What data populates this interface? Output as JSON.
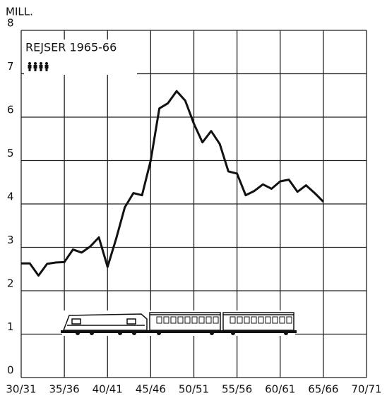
{
  "chart_data": {
    "type": "line",
    "title": "REJSER 1965-66",
    "ylabel": "MILL.",
    "x": [
      1930,
      1931,
      1932,
      1933,
      1934,
      1935,
      1936,
      1937,
      1938,
      1939,
      1940,
      1941,
      1942,
      1943,
      1944,
      1945,
      1946,
      1947,
      1948,
      1949,
      1950,
      1951,
      1952,
      1953,
      1954,
      1955,
      1956,
      1957,
      1958,
      1959,
      1960,
      1961,
      1962,
      1963,
      1964,
      1965
    ],
    "series": [
      {
        "color": "#111111",
        "values": [
          2.63,
          2.63,
          2.35,
          2.62,
          2.65,
          2.66,
          2.95,
          2.88,
          3.02,
          3.23,
          2.55,
          3.2,
          3.92,
          4.25,
          4.2,
          5.0,
          6.2,
          6.32,
          6.6,
          6.38,
          5.85,
          5.42,
          5.68,
          5.38,
          4.75,
          4.7,
          4.2,
          4.3,
          4.45,
          4.35,
          4.52,
          4.56,
          4.28,
          4.43,
          4.25,
          4.05
        ]
      }
    ],
    "xlim": [
      1930,
      1970
    ],
    "xticks": [
      {
        "value": 1930,
        "label": "30/31"
      },
      {
        "value": 1935,
        "label": "35/36"
      },
      {
        "value": 1940,
        "label": "40/41"
      },
      {
        "value": 1945,
        "label": "45/46"
      },
      {
        "value": 1950,
        "label": "50/51"
      },
      {
        "value": 1955,
        "label": "55/56"
      },
      {
        "value": 1960,
        "label": "60/61"
      },
      {
        "value": 1965,
        "label": "65/66"
      },
      {
        "value": 1970,
        "label": "70/71"
      }
    ],
    "ylim": [
      0,
      8
    ],
    "yticks": [
      0,
      1,
      2,
      3,
      4,
      5,
      6,
      7,
      8
    ],
    "grid": true
  }
}
